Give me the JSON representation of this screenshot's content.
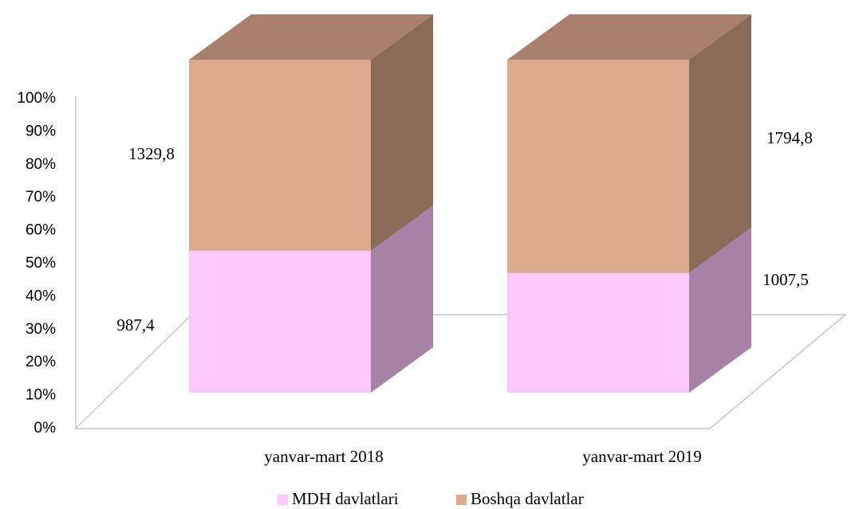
{
  "chart_data": {
    "type": "bar",
    "stacked": "percent",
    "categories": [
      "yanvar-mart 2018",
      "yanvar-mart 2019"
    ],
    "series": [
      {
        "name": "MDH davlatlari",
        "color": "#fcc8fc",
        "side_color": "#a682a6",
        "values": [
          987.4,
          1007.5
        ],
        "value_labels": [
          "987,4",
          "1007,5"
        ]
      },
      {
        "name": "Boshqa davlatlar",
        "color": "#dcaa8f",
        "side_color": "#8c6a58",
        "top_color": "#a98070",
        "values": [
          1329.8,
          1794.8
        ],
        "value_labels": [
          "1329,8",
          "1794,8"
        ]
      }
    ],
    "ylim": [
      0,
      100
    ],
    "yticks": [
      {
        "value": 0,
        "label": "0%"
      },
      {
        "value": 10,
        "label": "10%"
      },
      {
        "value": 20,
        "label": "20%"
      },
      {
        "value": 30,
        "label": "30%"
      },
      {
        "value": 40,
        "label": "40%"
      },
      {
        "value": 50,
        "label": "50%"
      },
      {
        "value": 60,
        "label": "60%"
      },
      {
        "value": 70,
        "label": "70%"
      },
      {
        "value": 80,
        "label": "80%"
      },
      {
        "value": 90,
        "label": "90%"
      },
      {
        "value": 100,
        "label": "100%"
      }
    ],
    "legend": "bottom"
  }
}
